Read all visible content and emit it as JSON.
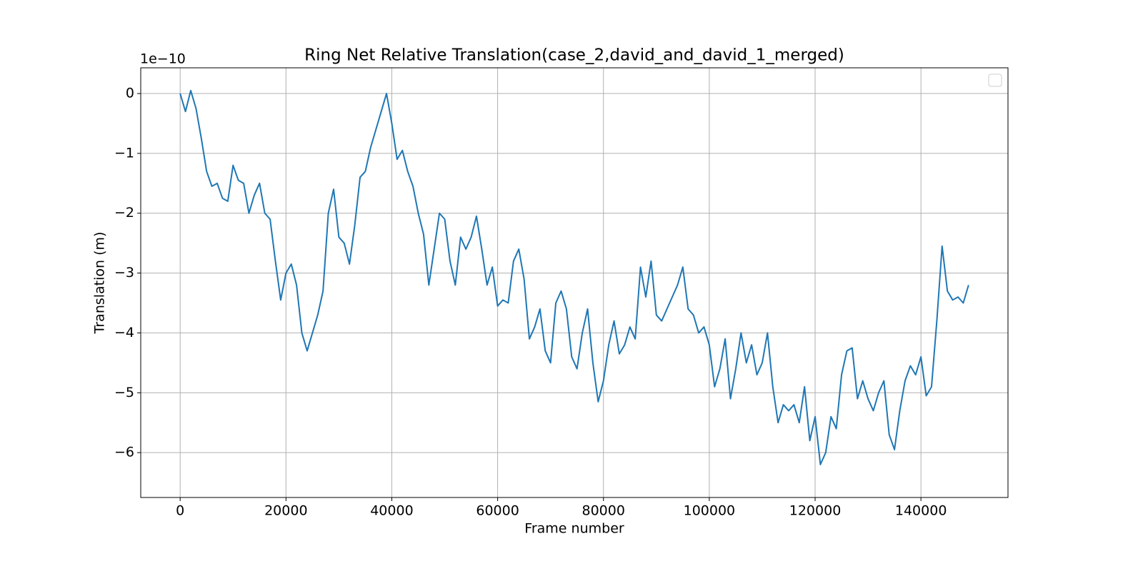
{
  "chart_data": {
    "type": "line",
    "title": "Ring Net Relative Translation(case_2,david_and_david_1_merged)",
    "x_label": "Frame number",
    "y_label": "Translation (m)",
    "y_offset_label": "1e−10",
    "legend": "upper right",
    "grid": true,
    "xlim": [
      -7450,
      156450
    ],
    "ylim": [
      -6.75,
      0.43
    ],
    "xticks": [
      0,
      20000,
      40000,
      60000,
      80000,
      100000,
      120000,
      140000
    ],
    "yticks": [
      {
        "value": -6,
        "label": "−6"
      },
      {
        "value": -5,
        "label": "−5"
      },
      {
        "value": -4,
        "label": "−4"
      },
      {
        "value": -3,
        "label": "−3"
      },
      {
        "value": -2,
        "label": "−2"
      },
      {
        "value": -1,
        "label": "−1"
      },
      0
    ],
    "x": [
      0,
      1000,
      2000,
      3000,
      4000,
      5000,
      6000,
      7000,
      8000,
      9000,
      10000,
      11000,
      12000,
      13000,
      14000,
      15000,
      16000,
      17000,
      18000,
      19000,
      20000,
      21000,
      22000,
      23000,
      24000,
      25000,
      26000,
      27000,
      28000,
      29000,
      30000,
      31000,
      32000,
      33000,
      34000,
      35000,
      36000,
      37000,
      38000,
      39000,
      40000,
      41000,
      42000,
      43000,
      44000,
      45000,
      46000,
      47000,
      48000,
      49000,
      50000,
      51000,
      52000,
      53000,
      54000,
      55000,
      56000,
      57000,
      58000,
      59000,
      60000,
      61000,
      62000,
      63000,
      64000,
      65000,
      66000,
      67000,
      68000,
      69000,
      70000,
      71000,
      72000,
      73000,
      74000,
      75000,
      76000,
      77000,
      78000,
      79000,
      80000,
      81000,
      82000,
      83000,
      84000,
      85000,
      86000,
      87000,
      88000,
      89000,
      90000,
      91000,
      92000,
      93000,
      94000,
      95000,
      96000,
      97000,
      98000,
      99000,
      100000,
      101000,
      102000,
      103000,
      104000,
      105000,
      106000,
      107000,
      108000,
      109000,
      110000,
      111000,
      112000,
      113000,
      114000,
      115000,
      116000,
      117000,
      118000,
      119000,
      120000,
      121000,
      122000,
      123000,
      124000,
      125000,
      126000,
      127000,
      128000,
      129000,
      130000,
      131000,
      132000,
      133000,
      134000,
      135000,
      136000,
      137000,
      138000,
      139000,
      140000,
      141000,
      142000,
      143000,
      144000,
      145000,
      146000,
      147000,
      148000,
      149000
    ],
    "series": [
      {
        "color": "#1f77b4",
        "values": [
          0.0,
          -0.3,
          0.05,
          -0.25,
          -0.75,
          -1.3,
          -1.55,
          -1.5,
          -1.75,
          -1.8,
          -1.2,
          -1.45,
          -1.5,
          -2.0,
          -1.7,
          -1.5,
          -2.0,
          -2.1,
          -2.8,
          -3.45,
          -3.0,
          -2.85,
          -3.2,
          -4.0,
          -4.3,
          -4.0,
          -3.7,
          -3.3,
          -2.0,
          -1.6,
          -2.4,
          -2.5,
          -2.85,
          -2.2,
          -1.4,
          -1.3,
          -0.9,
          -0.6,
          -0.3,
          0.0,
          -0.5,
          -1.1,
          -0.95,
          -1.3,
          -1.55,
          -2.0,
          -2.35,
          -3.2,
          -2.6,
          -2.0,
          -2.1,
          -2.8,
          -3.2,
          -2.4,
          -2.6,
          -2.4,
          -2.05,
          -2.6,
          -3.2,
          -2.9,
          -3.55,
          -3.45,
          -3.5,
          -2.8,
          -2.6,
          -3.1,
          -4.1,
          -3.9,
          -3.6,
          -4.3,
          -4.5,
          -3.5,
          -3.3,
          -3.6,
          -4.4,
          -4.6,
          -4.0,
          -3.6,
          -4.5,
          -5.15,
          -4.8,
          -4.2,
          -3.8,
          -4.35,
          -4.2,
          -3.9,
          -4.1,
          -2.9,
          -3.4,
          -2.8,
          -3.7,
          -3.8,
          -3.6,
          -3.4,
          -3.2,
          -2.9,
          -3.6,
          -3.7,
          -4.0,
          -3.9,
          -4.2,
          -4.9,
          -4.6,
          -4.1,
          -5.1,
          -4.6,
          -4.0,
          -4.5,
          -4.2,
          -4.7,
          -4.5,
          -4.0,
          -4.9,
          -5.5,
          -5.2,
          -5.3,
          -5.2,
          -5.5,
          -4.9,
          -5.8,
          -5.4,
          -6.2,
          -6.0,
          -5.4,
          -5.6,
          -4.7,
          -4.3,
          -4.25,
          -5.1,
          -4.8,
          -5.1,
          -5.3,
          -5.0,
          -4.8,
          -5.7,
          -5.95,
          -5.3,
          -4.8,
          -4.55,
          -4.7,
          -4.4,
          -5.05,
          -4.9,
          -3.8,
          -2.55,
          -3.3,
          -3.45,
          -3.4,
          -3.5,
          -3.2
        ]
      }
    ]
  }
}
